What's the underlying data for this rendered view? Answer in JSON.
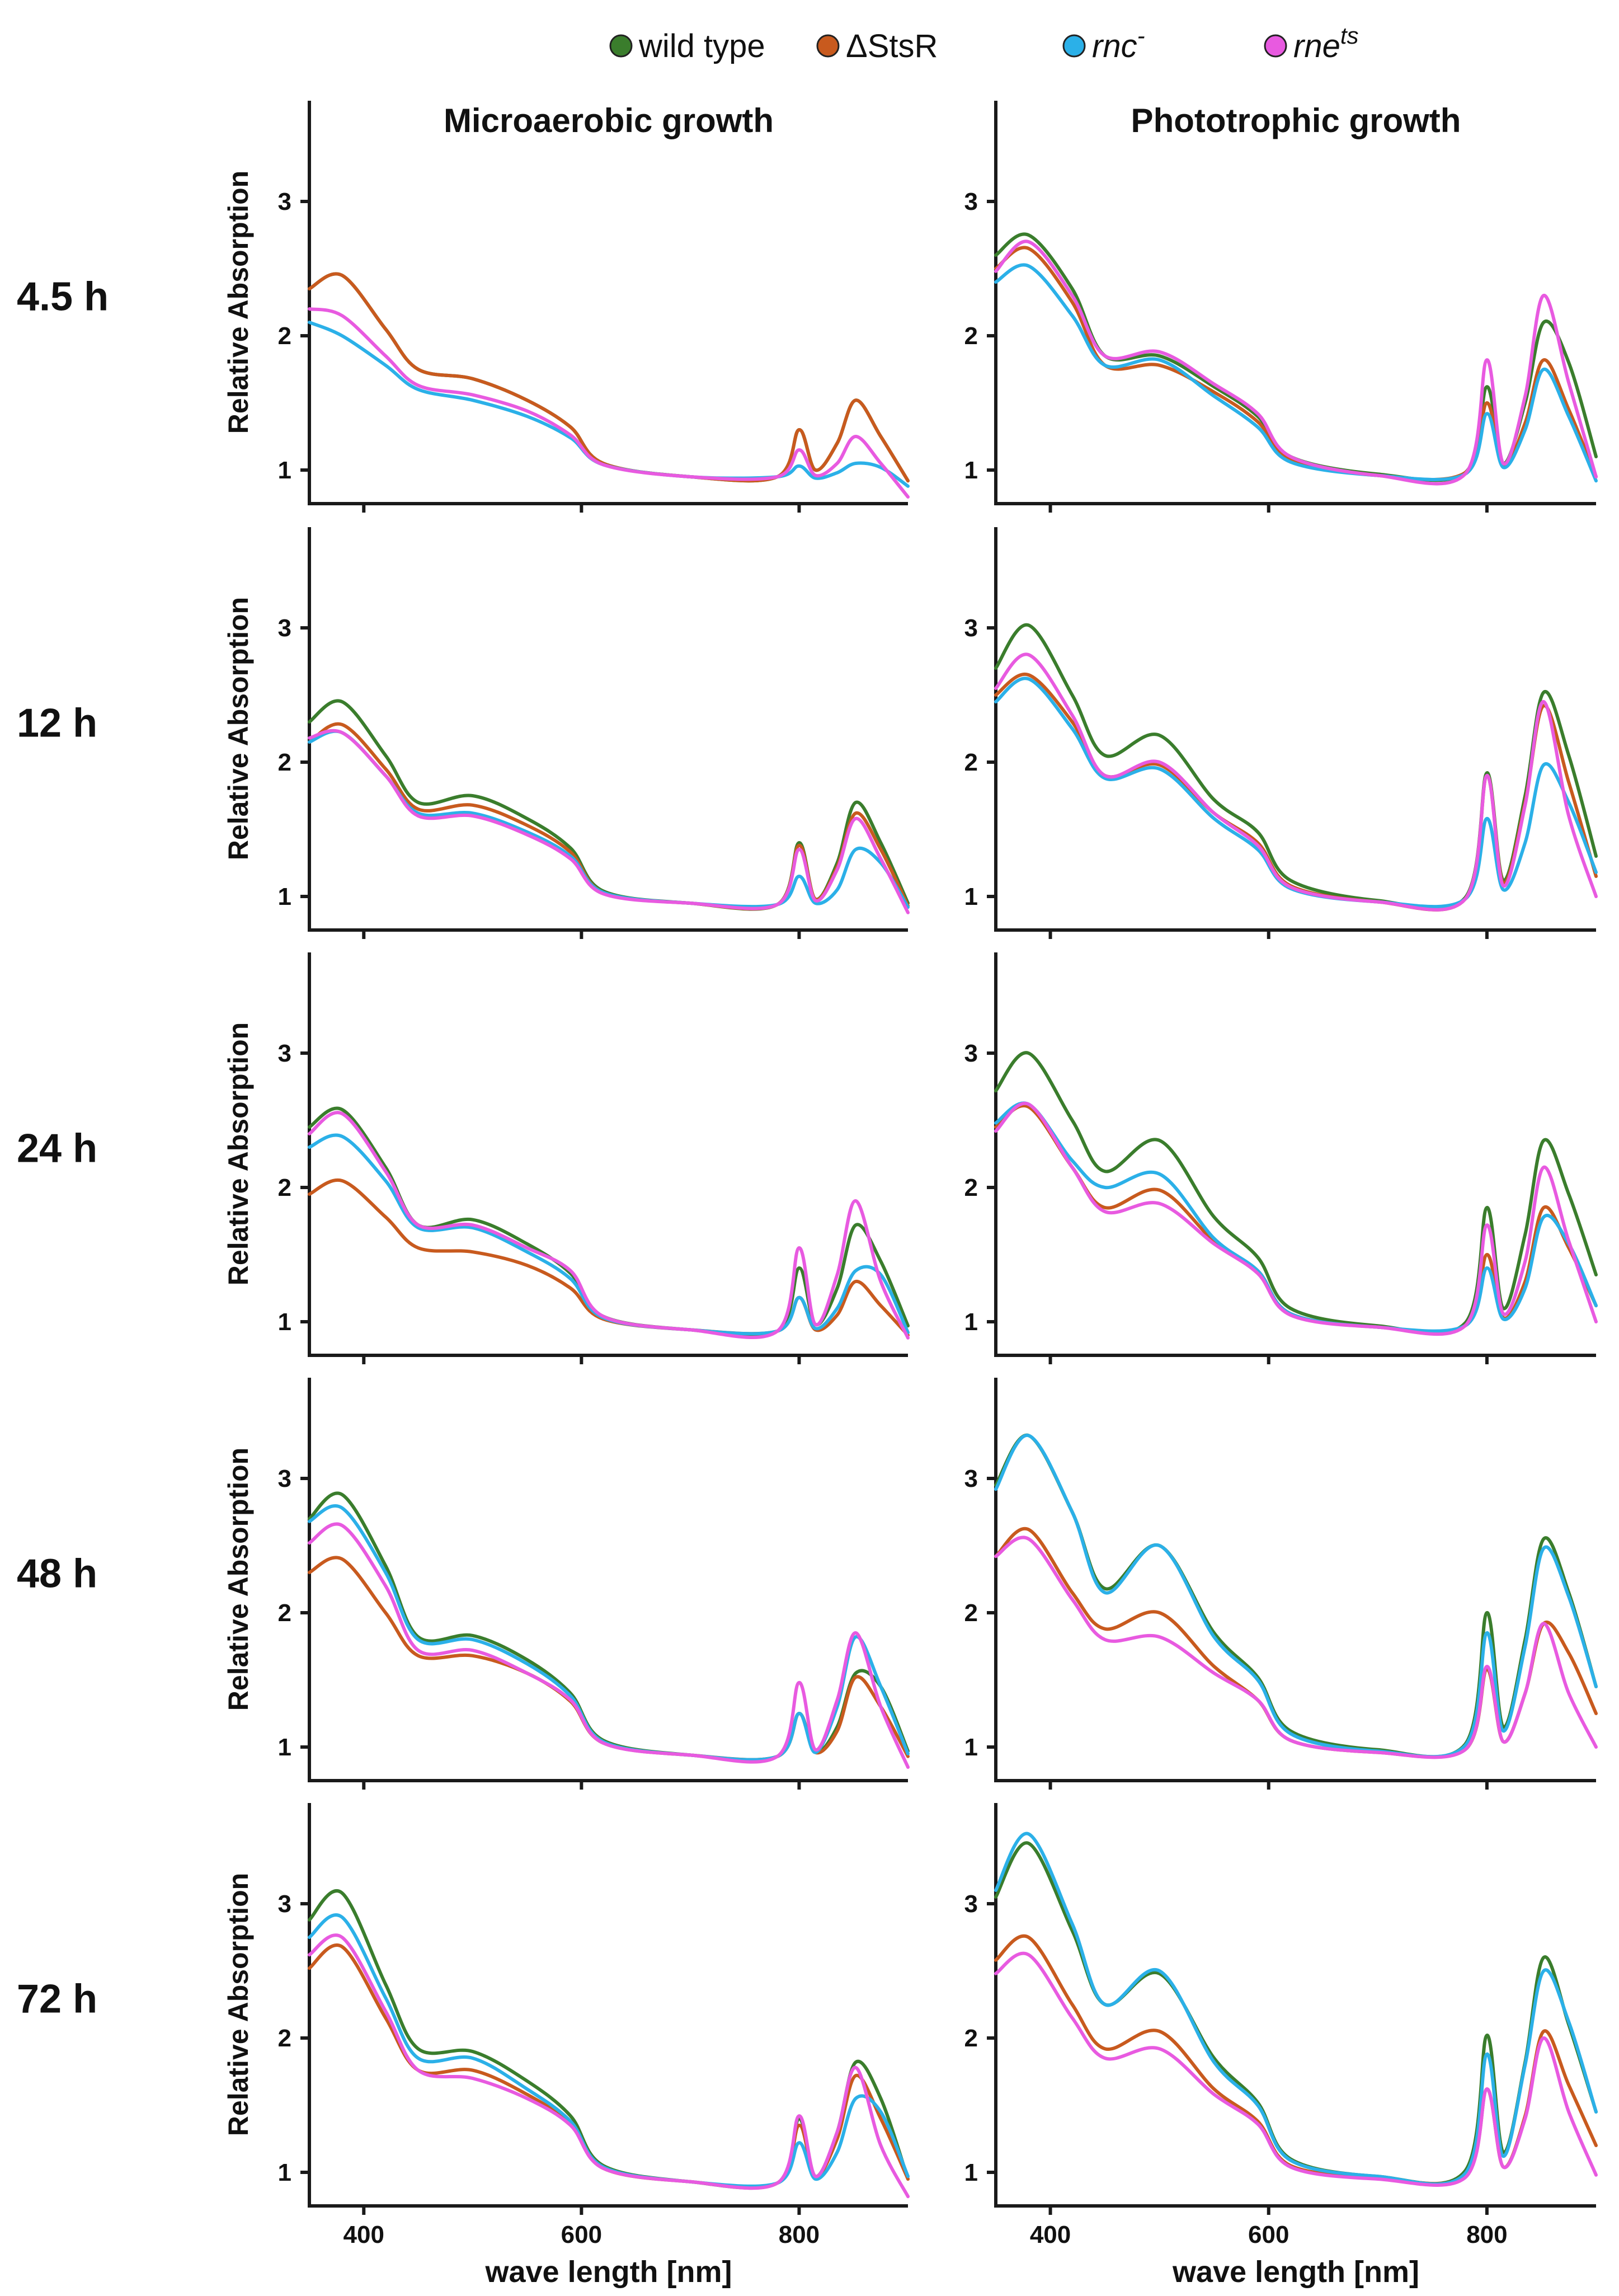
{
  "chart_data": {
    "type": "line",
    "legend": {
      "placement": "top-center",
      "entries": [
        {
          "key": "wt",
          "label": "wild type",
          "color": "#3a7d2c"
        },
        {
          "key": "dstsr",
          "label": "ΔStsR",
          "color": "#c85a1e"
        },
        {
          "key": "rnc",
          "label": "rnc",
          "sup": "-",
          "color": "#2bb0e8"
        },
        {
          "key": "rne",
          "label": "rne",
          "sup": "ts",
          "color": "#e85ae0"
        }
      ]
    },
    "columns": [
      "Microaerobic growth",
      "Phototrophic growth"
    ],
    "rows": [
      "4.5 h",
      "12 h",
      "24 h",
      "48 h",
      "72 h"
    ],
    "ylabel": "Relative Absorption",
    "xlabel": "wave length [nm]",
    "xlim": [
      350,
      900
    ],
    "ylim": [
      0.75,
      3.75
    ],
    "xticks": [
      400,
      600,
      800
    ],
    "yticks": [
      1,
      2,
      3
    ],
    "x": [
      350,
      380,
      420,
      450,
      500,
      550,
      590,
      620,
      700,
      780,
      800,
      815,
      835,
      852,
      875,
      900
    ],
    "panels": [
      {
        "row": "4.5 h",
        "column": "Microaerobic growth",
        "series": {
          "wt": [
            2.35,
            2.45,
            2.05,
            1.75,
            1.68,
            1.52,
            1.32,
            1.05,
            0.95,
            0.95,
            1.3,
            1.0,
            1.2,
            1.52,
            1.25,
            0.92
          ],
          "dstsr": [
            2.35,
            2.45,
            2.05,
            1.75,
            1.68,
            1.52,
            1.32,
            1.05,
            0.95,
            0.95,
            1.3,
            1.0,
            1.2,
            1.52,
            1.25,
            0.92
          ],
          "rnc": [
            2.1,
            2.0,
            1.78,
            1.6,
            1.52,
            1.4,
            1.24,
            1.04,
            0.95,
            0.95,
            1.03,
            0.94,
            0.98,
            1.05,
            1.02,
            0.88
          ],
          "rne": [
            2.2,
            2.15,
            1.85,
            1.63,
            1.56,
            1.44,
            1.26,
            1.04,
            0.95,
            0.95,
            1.15,
            0.96,
            1.05,
            1.25,
            1.05,
            0.8
          ]
        }
      },
      {
        "row": "4.5 h",
        "column": "Phototrophic growth",
        "series": {
          "wt": [
            2.6,
            2.75,
            2.35,
            1.85,
            1.85,
            1.62,
            1.4,
            1.1,
            0.97,
            0.98,
            1.62,
            1.05,
            1.5,
            2.1,
            1.8,
            1.1
          ],
          "dstsr": [
            2.5,
            2.65,
            2.25,
            1.78,
            1.78,
            1.58,
            1.36,
            1.08,
            0.96,
            0.98,
            1.5,
            1.03,
            1.35,
            1.82,
            1.45,
            0.95
          ],
          "rnc": [
            2.4,
            2.52,
            2.15,
            1.78,
            1.82,
            1.55,
            1.32,
            1.06,
            0.96,
            0.97,
            1.42,
            1.02,
            1.3,
            1.75,
            1.4,
            0.92
          ],
          "rne": [
            2.48,
            2.7,
            2.3,
            1.85,
            1.88,
            1.64,
            1.42,
            1.1,
            0.96,
            0.97,
            1.82,
            1.05,
            1.55,
            2.3,
            1.65,
            0.95
          ]
        }
      },
      {
        "row": "12 h",
        "column": "Microaerobic growth",
        "series": {
          "wt": [
            2.3,
            2.45,
            2.05,
            1.7,
            1.75,
            1.58,
            1.36,
            1.04,
            0.95,
            0.94,
            1.4,
            0.98,
            1.25,
            1.7,
            1.4,
            0.95
          ],
          "dstsr": [
            2.15,
            2.28,
            1.95,
            1.65,
            1.68,
            1.53,
            1.33,
            1.03,
            0.95,
            0.94,
            1.38,
            0.98,
            1.22,
            1.62,
            1.35,
            0.93
          ],
          "rnc": [
            2.15,
            2.22,
            1.9,
            1.62,
            1.62,
            1.48,
            1.3,
            1.03,
            0.95,
            0.94,
            1.15,
            0.95,
            1.05,
            1.35,
            1.25,
            0.92
          ],
          "rne": [
            2.18,
            2.22,
            1.9,
            1.6,
            1.6,
            1.46,
            1.28,
            1.02,
            0.95,
            0.94,
            1.35,
            0.97,
            1.2,
            1.58,
            1.28,
            0.88
          ]
        }
      },
      {
        "row": "12 h",
        "column": "Phototrophic growth",
        "series": {
          "wt": [
            2.7,
            3.02,
            2.5,
            2.05,
            2.2,
            1.72,
            1.48,
            1.12,
            0.97,
            0.99,
            1.92,
            1.12,
            1.75,
            2.52,
            2.05,
            1.3
          ],
          "dstsr": [
            2.5,
            2.65,
            2.3,
            1.9,
            1.98,
            1.62,
            1.4,
            1.08,
            0.96,
            0.98,
            1.9,
            1.1,
            1.7,
            2.42,
            1.85,
            1.15
          ],
          "rnc": [
            2.45,
            2.62,
            2.25,
            1.88,
            1.95,
            1.58,
            1.35,
            1.06,
            0.96,
            0.98,
            1.58,
            1.05,
            1.4,
            1.98,
            1.7,
            1.18
          ],
          "rne": [
            2.55,
            2.8,
            2.35,
            1.9,
            2.0,
            1.62,
            1.38,
            1.07,
            0.96,
            0.98,
            1.9,
            1.08,
            1.68,
            2.45,
            1.6,
            1.0
          ]
        }
      },
      {
        "row": "24 h",
        "column": "Microaerobic growth",
        "series": {
          "wt": [
            2.45,
            2.58,
            2.15,
            1.72,
            1.76,
            1.58,
            1.36,
            1.04,
            0.94,
            0.93,
            1.4,
            0.98,
            1.25,
            1.72,
            1.45,
            0.97
          ],
          "dstsr": [
            1.95,
            2.05,
            1.78,
            1.55,
            1.52,
            1.42,
            1.25,
            1.02,
            0.94,
            0.93,
            1.18,
            0.94,
            1.05,
            1.3,
            1.12,
            0.9
          ],
          "rnc": [
            2.3,
            2.38,
            2.05,
            1.7,
            1.7,
            1.52,
            1.32,
            1.03,
            0.94,
            0.93,
            1.18,
            0.95,
            1.1,
            1.38,
            1.35,
            0.92
          ],
          "rne": [
            2.4,
            2.55,
            2.12,
            1.72,
            1.72,
            1.55,
            1.38,
            1.04,
            0.94,
            0.93,
            1.55,
            0.98,
            1.35,
            1.9,
            1.3,
            0.88
          ]
        }
      },
      {
        "row": "24 h",
        "column": "Phototrophic growth",
        "series": {
          "wt": [
            2.72,
            3.0,
            2.5,
            2.12,
            2.35,
            1.78,
            1.48,
            1.1,
            0.97,
            0.99,
            1.85,
            1.1,
            1.65,
            2.35,
            1.95,
            1.35
          ],
          "dstsr": [
            2.45,
            2.6,
            2.15,
            1.85,
            1.98,
            1.6,
            1.38,
            1.06,
            0.96,
            0.97,
            1.5,
            1.03,
            1.3,
            1.85,
            1.55,
            1.12
          ],
          "rnc": [
            2.48,
            2.62,
            2.2,
            2.0,
            2.1,
            1.62,
            1.38,
            1.06,
            0.96,
            0.97,
            1.4,
            1.02,
            1.25,
            1.78,
            1.58,
            1.12
          ],
          "rne": [
            2.42,
            2.62,
            2.15,
            1.82,
            1.88,
            1.58,
            1.36,
            1.05,
            0.96,
            0.97,
            1.72,
            1.06,
            1.45,
            2.15,
            1.6,
            1.0
          ]
        }
      },
      {
        "row": "48 h",
        "column": "Microaerobic growth",
        "series": {
          "wt": [
            2.7,
            2.88,
            2.35,
            1.82,
            1.83,
            1.65,
            1.4,
            1.05,
            0.94,
            0.93,
            1.25,
            0.96,
            1.15,
            1.55,
            1.45,
            0.97
          ],
          "dstsr": [
            2.3,
            2.4,
            2.0,
            1.68,
            1.68,
            1.55,
            1.34,
            1.03,
            0.94,
            0.93,
            1.25,
            0.96,
            1.12,
            1.52,
            1.3,
            0.93
          ],
          "rnc": [
            2.68,
            2.78,
            2.3,
            1.8,
            1.8,
            1.62,
            1.38,
            1.04,
            0.94,
            0.93,
            1.25,
            0.96,
            1.3,
            1.82,
            1.45,
            0.95
          ],
          "rne": [
            2.52,
            2.65,
            2.2,
            1.72,
            1.72,
            1.55,
            1.35,
            1.03,
            0.94,
            0.93,
            1.48,
            0.98,
            1.35,
            1.85,
            1.3,
            0.85
          ]
        }
      },
      {
        "row": "48 h",
        "column": "Phototrophic growth",
        "series": {
          "wt": [
            2.95,
            3.32,
            2.75,
            2.18,
            2.5,
            1.85,
            1.52,
            1.12,
            0.98,
            1.02,
            2.0,
            1.15,
            1.8,
            2.55,
            2.15,
            1.45
          ],
          "dstsr": [
            2.42,
            2.62,
            2.15,
            1.88,
            2.0,
            1.6,
            1.35,
            1.05,
            0.96,
            0.98,
            1.58,
            1.04,
            1.4,
            1.92,
            1.7,
            1.25
          ],
          "rnc": [
            2.92,
            3.32,
            2.75,
            2.15,
            2.5,
            1.82,
            1.5,
            1.1,
            0.97,
            1.01,
            1.85,
            1.12,
            1.75,
            2.48,
            2.12,
            1.45
          ],
          "rne": [
            2.42,
            2.55,
            2.1,
            1.8,
            1.82,
            1.55,
            1.35,
            1.05,
            0.96,
            0.98,
            1.6,
            1.04,
            1.4,
            1.92,
            1.4,
            1.0
          ]
        }
      },
      {
        "row": "72 h",
        "column": "Microaerobic growth",
        "series": {
          "wt": [
            2.88,
            3.08,
            2.4,
            1.92,
            1.9,
            1.68,
            1.42,
            1.05,
            0.93,
            0.92,
            1.4,
            0.97,
            1.3,
            1.82,
            1.55,
            0.95
          ],
          "dstsr": [
            2.52,
            2.68,
            2.15,
            1.76,
            1.76,
            1.58,
            1.36,
            1.03,
            0.93,
            0.92,
            1.35,
            0.97,
            1.25,
            1.72,
            1.4,
            0.95
          ],
          "rnc": [
            2.75,
            2.9,
            2.3,
            1.85,
            1.85,
            1.62,
            1.38,
            1.04,
            0.93,
            0.92,
            1.22,
            0.95,
            1.15,
            1.55,
            1.45,
            0.97
          ],
          "rne": [
            2.62,
            2.75,
            2.2,
            1.76,
            1.7,
            1.55,
            1.35,
            1.03,
            0.93,
            0.92,
            1.42,
            0.97,
            1.3,
            1.78,
            1.2,
            0.82
          ]
        }
      },
      {
        "row": "72 h",
        "column": "Phototrophic growth",
        "series": {
          "wt": [
            3.05,
            3.45,
            2.8,
            2.25,
            2.48,
            1.85,
            1.52,
            1.1,
            0.97,
            1.01,
            2.02,
            1.15,
            1.82,
            2.6,
            2.1,
            1.45
          ],
          "dstsr": [
            2.58,
            2.75,
            2.25,
            1.92,
            2.05,
            1.62,
            1.38,
            1.05,
            0.96,
            0.97,
            1.62,
            1.04,
            1.42,
            2.05,
            1.65,
            1.2
          ],
          "rnc": [
            3.1,
            3.52,
            2.85,
            2.25,
            2.5,
            1.82,
            1.5,
            1.09,
            0.97,
            0.99,
            1.88,
            1.12,
            1.8,
            2.5,
            2.12,
            1.45
          ],
          "rne": [
            2.48,
            2.62,
            2.15,
            1.85,
            1.92,
            1.58,
            1.36,
            1.04,
            0.95,
            0.96,
            1.62,
            1.04,
            1.4,
            2.0,
            1.45,
            0.98
          ]
        }
      }
    ]
  }
}
